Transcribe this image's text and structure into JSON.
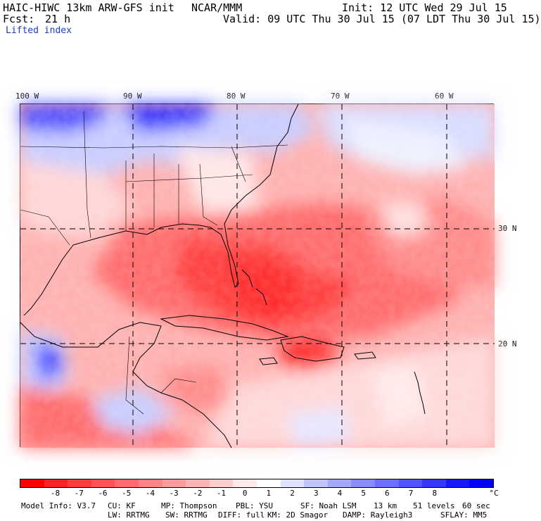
{
  "header": {
    "title": "HAIC-HIWC 13km ARW-GFS init",
    "center": "NCAR/MMM",
    "init": "Init: 12 UTC Wed 29 Jul 15",
    "fcst_label": "Fcst:",
    "fcst_value": "21 h",
    "valid": "Valid: 09 UTC Thu 30 Jul 15 (07 LDT Thu 30 Jul 15)",
    "field": "Lifted index"
  },
  "map": {
    "lon_labels": [
      "100 W",
      "90 W",
      "80 W",
      "70 W",
      "60 W"
    ],
    "lat_labels": [
      "30 N",
      "20 N"
    ],
    "colors": {
      "strong_neg": "#ff2a2a",
      "neg": "#ff6b6b",
      "weak_neg": "#ffb0b0",
      "neutral": "#fff0f0",
      "pos": "#c8ccff",
      "strong_pos": "#2a2aff",
      "land_line": "#000000",
      "grid_line": "#000000"
    }
  },
  "colorbar": {
    "labels": [
      "-8",
      "-7",
      "-6",
      "-5",
      "-4",
      "-3",
      "-2",
      "-1",
      "0",
      "1",
      "2",
      "3",
      "4",
      "5",
      "6",
      "7",
      "8"
    ],
    "unit": "°C",
    "colors": [
      "#ff0000",
      "#ff2424",
      "#ff3c3c",
      "#ff5454",
      "#ff6c6c",
      "#ff8484",
      "#ff9c9c",
      "#ffb4b4",
      "#ffcccc",
      "#ffe8e8",
      "#ffffff",
      "#e0e0ff",
      "#c0c4ff",
      "#a4a8ff",
      "#888cff",
      "#6c70ff",
      "#5054ff",
      "#3438ff",
      "#1818ff",
      "#0000ff"
    ]
  },
  "footer": {
    "line1": [
      "Model Info: V3.7",
      "CU: KF",
      "MP: Thompson",
      "PBL: YSU",
      "SF: Noah LSM",
      "13 km",
      "51 levels",
      "60 sec"
    ],
    "line2": [
      "LW: RRTMG",
      "SW: RRTMG",
      "DIFF: full",
      "KM: 2D Smagor",
      "DAMP: Rayleigh3",
      "SFLAY: MM5"
    ]
  }
}
